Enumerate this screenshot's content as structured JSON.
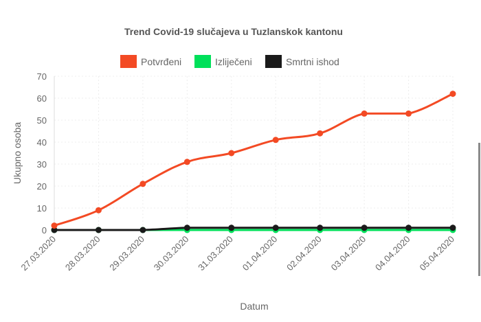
{
  "chart_data": {
    "type": "line",
    "title": "Trend Covid-19 slučajeva u Tuzlanskok kantonu",
    "xlabel": "Datum",
    "ylabel": "Ukupno osoba",
    "ylim": [
      0,
      70
    ],
    "yticks": [
      0,
      10,
      20,
      30,
      40,
      50,
      60,
      70
    ],
    "grid": true,
    "legend_position": "top",
    "categories": [
      "27.03.2020",
      "28.03.2020",
      "29.03.2020",
      "30.03.2020",
      "31.03.2020",
      "01.04.2020",
      "02.04.2020",
      "03.04.2020",
      "04.04.2020",
      "05.04.2020"
    ],
    "series": [
      {
        "name": "Potvrđeni",
        "color": "#f34a24",
        "values": [
          2,
          9,
          21,
          31,
          35,
          41,
          44,
          53,
          53,
          62
        ]
      },
      {
        "name": "Izliječeni",
        "color": "#00e05a",
        "values": [
          0,
          0,
          0,
          0,
          0,
          0,
          0,
          0,
          0,
          0
        ]
      },
      {
        "name": "Smrtni ishod",
        "color": "#1a1a1a",
        "values": [
          0,
          0,
          0,
          1,
          1,
          1,
          1,
          1,
          1,
          1
        ]
      }
    ]
  }
}
